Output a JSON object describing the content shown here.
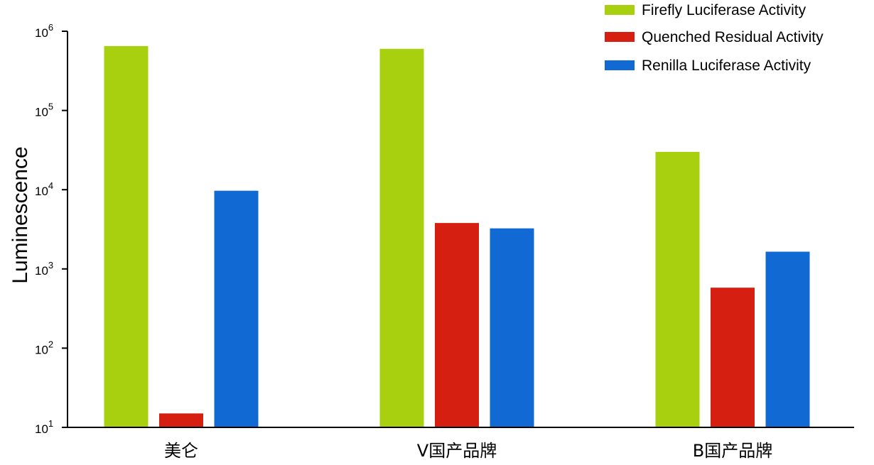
{
  "chart_data": {
    "type": "bar",
    "scale": "log",
    "ylabel": "Luminescence",
    "xlabel": "",
    "title": "",
    "ylim": [
      10,
      1000000
    ],
    "yticks": [
      {
        "value": 10,
        "base": "10",
        "exp": "1"
      },
      {
        "value": 100,
        "base": "10",
        "exp": "2"
      },
      {
        "value": 1000,
        "base": "10",
        "exp": "3"
      },
      {
        "value": 10000,
        "base": "10",
        "exp": "4"
      },
      {
        "value": 100000,
        "base": "10",
        "exp": "5"
      },
      {
        "value": 1000000,
        "base": "10",
        "exp": "6"
      }
    ],
    "categories": [
      "美仑",
      "V国产品牌",
      "B国产品牌"
    ],
    "series": [
      {
        "name": "Firefly Luciferase Activity",
        "color": "#a8d00f",
        "values": [
          650000,
          600000,
          30000
        ]
      },
      {
        "name": "Quenched Residual Activity",
        "color": "#d41f11",
        "values": [
          15,
          3800,
          580
        ]
      },
      {
        "name": "Renilla Luciferase Activity",
        "color": "#1169d3",
        "values": [
          9700,
          3250,
          1650
        ]
      }
    ],
    "legend_position": "top-right",
    "grid": false
  }
}
